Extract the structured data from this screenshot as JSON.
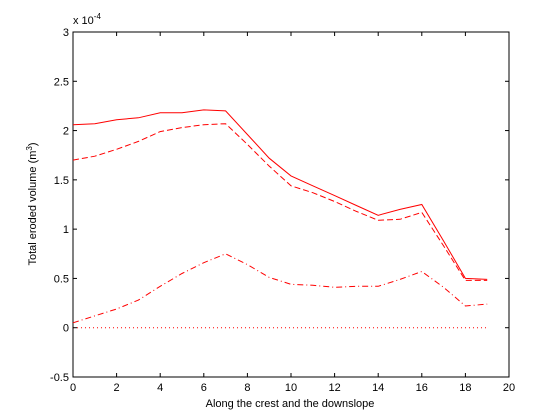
{
  "chart_data": {
    "type": "line",
    "title": "",
    "xlabel": "Along the crest and the downslope",
    "ylabel": "Total eroded volume (m",
    "ylabel_superscript": "3",
    "ylabel_suffix": ")",
    "y_multiplier_base": "x 10",
    "y_multiplier_exponent": "-4",
    "xlim": [
      0,
      20
    ],
    "ylim": [
      -0.5,
      3
    ],
    "xticks": [
      0,
      2,
      4,
      6,
      8,
      10,
      12,
      14,
      16,
      18,
      20
    ],
    "yticks": [
      -0.5,
      0,
      0.5,
      1,
      1.5,
      2,
      2.5,
      3
    ],
    "xtick_labels": [
      "0",
      "2",
      "4",
      "6",
      "8",
      "10",
      "12",
      "14",
      "16",
      "18",
      "20"
    ],
    "ytick_labels": [
      "-0.5",
      "0",
      "0.5",
      "1",
      "1.5",
      "2",
      "2.5",
      "3"
    ],
    "grid": false,
    "legend": "none",
    "series": [
      {
        "line_style": "solid",
        "color": "#ff0000",
        "x": [
          0,
          1,
          2,
          3,
          4,
          5,
          6,
          7,
          8,
          9,
          10,
          11,
          12,
          13,
          14,
          15,
          16,
          17,
          18,
          19
        ],
        "values": [
          2.06,
          2.07,
          2.11,
          2.13,
          2.18,
          2.18,
          2.21,
          2.2,
          1.96,
          1.72,
          1.54,
          1.44,
          1.34,
          1.24,
          1.14,
          1.2,
          1.25,
          0.88,
          0.5,
          0.49
        ]
      },
      {
        "line_style": "dashed",
        "color": "#ff0000",
        "x": [
          0,
          1,
          2,
          3,
          4,
          5,
          6,
          7,
          8,
          9,
          10,
          11,
          12,
          13,
          14,
          15,
          16,
          17,
          18,
          19
        ],
        "values": [
          1.7,
          1.74,
          1.81,
          1.89,
          1.99,
          2.03,
          2.06,
          2.07,
          1.86,
          1.64,
          1.44,
          1.37,
          1.28,
          1.18,
          1.09,
          1.1,
          1.17,
          0.83,
          0.48,
          0.48
        ]
      },
      {
        "line_style": "dash-dot",
        "color": "#ff0000",
        "x": [
          0,
          1,
          2,
          3,
          4,
          5,
          6,
          7,
          8,
          9,
          10,
          11,
          12,
          13,
          14,
          15,
          16,
          17,
          18,
          19
        ],
        "values": [
          0.05,
          0.12,
          0.19,
          0.28,
          0.42,
          0.55,
          0.66,
          0.75,
          0.64,
          0.51,
          0.44,
          0.43,
          0.41,
          0.42,
          0.42,
          0.49,
          0.57,
          0.41,
          0.22,
          0.24
        ]
      },
      {
        "line_style": "dotted",
        "color": "#ff0000",
        "x": [
          0,
          19
        ],
        "values": [
          0,
          0
        ]
      }
    ]
  }
}
